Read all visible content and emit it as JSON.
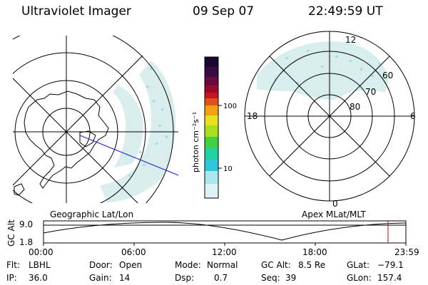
{
  "header": {
    "instrument": "Ultraviolet Imager",
    "date": "09 Sep 07",
    "time": "22:49:59 UT"
  },
  "colorbar": {
    "label": "photon cm⁻²s⁻¹",
    "ticks": [
      "100",
      "10"
    ],
    "colors": [
      "#1a0830",
      "#3a0a45",
      "#6a0a3a",
      "#9a0a2a",
      "#c8141e",
      "#e0501a",
      "#f0a010",
      "#e8e020",
      "#a8e020",
      "#40d040",
      "#20d0a0",
      "#30c8d8",
      "#a8e8ec",
      "#dcf2f4"
    ]
  },
  "geo_plot": {
    "label": "Geographic Lat/Lon"
  },
  "apex_plot": {
    "label": "Apex MLat/MLT",
    "mlt_labels": {
      "top": "12",
      "left": "18",
      "right": "6",
      "bottom": "0"
    },
    "lat_labels": [
      "60",
      "70",
      "80"
    ]
  },
  "altitude_plot": {
    "axis_label": "GC Alt",
    "y_ticks": [
      "9.0",
      "1.8"
    ],
    "x_ticks": [
      "00:00",
      "06:00",
      "12:00",
      "18:00",
      "23:59"
    ]
  },
  "status": {
    "flt_label": "Flt:",
    "flt_value": "LBHL",
    "ip_label": "IP:",
    "ip_value": "36.0",
    "door_label": "Door:",
    "door_value": "Open",
    "gain_label": "Gain:",
    "gain_value": "14",
    "mode_label": "Mode:",
    "mode_value": "Normal",
    "dsp_label": "Dsp:",
    "dsp_value": "0.7",
    "gcalt_label": "GC Alt:",
    "gcalt_value": "8.5 Re",
    "seq_label": "Seq:",
    "seq_value": "39",
    "glat_label": "GLat:",
    "glat_value": "−79.1",
    "glon_label": "GLon:",
    "glon_value": "157.4"
  }
}
